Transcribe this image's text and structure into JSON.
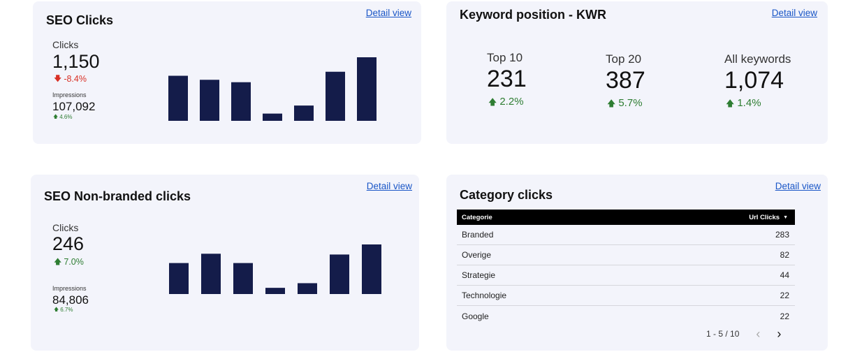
{
  "seo_clicks": {
    "title": "SEO Clicks",
    "detail_label": "Detail view",
    "metric_label": "Clicks",
    "metric_value": "1,150",
    "metric_delta": "-8.4%",
    "sub_label": "Impressions",
    "sub_value": "107,092",
    "sub_delta": "4.6%",
    "colors": {
      "bar": "#141c4a",
      "down": "#d93025",
      "up": "#2e7d32"
    },
    "chart_data": {
      "type": "bar",
      "values": [
        56,
        51,
        48,
        9,
        19,
        61,
        79
      ],
      "ylim": [
        0,
        79
      ]
    }
  },
  "keyword_position": {
    "title": "Keyword position - KWR",
    "detail_label": "Detail view",
    "metrics": [
      {
        "label": "Top 10",
        "value": "231",
        "delta": "2.2%"
      },
      {
        "label": "Top 20",
        "value": "387",
        "delta": "5.7%"
      },
      {
        "label": "All keywords",
        "value": "1,074",
        "delta": "1.4%"
      }
    ]
  },
  "seo_nonbranded": {
    "title": "SEO Non-branded clicks",
    "detail_label": "Detail view",
    "metric_label": "Clicks",
    "metric_value": "246",
    "metric_delta": "7.0%",
    "sub_label": "Impressions",
    "sub_value": "84,806",
    "sub_delta": "6.7%",
    "chart_data": {
      "type": "bar",
      "values": [
        40,
        52,
        40,
        8,
        14,
        51,
        64
      ],
      "ylim": [
        0,
        64
      ]
    }
  },
  "category_clicks": {
    "title": "Category clicks",
    "detail_label": "Detail view",
    "columns": [
      "Categorie",
      "Url Clicks"
    ],
    "rows": [
      {
        "name": "Branded",
        "value": "283"
      },
      {
        "name": "Overige",
        "value": "82"
      },
      {
        "name": "Strategie",
        "value": "44"
      },
      {
        "name": "Technologie",
        "value": "22"
      },
      {
        "name": "Google",
        "value": "22"
      }
    ],
    "pagination": "1 - 5 / 10"
  }
}
